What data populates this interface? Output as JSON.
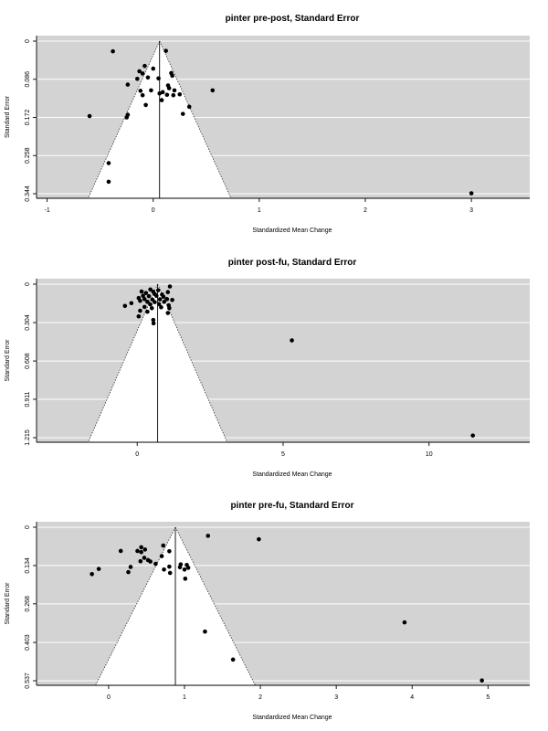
{
  "chart_data": [
    {
      "type": "scatter",
      "subtype": "funnel",
      "title": "pinter pre-post, Standard Error",
      "xlabel": "Standardized Mean Change",
      "ylabel": "Standard Error",
      "xlim": [
        -1.1,
        3.55
      ],
      "ylim": [
        0,
        0.344
      ],
      "y_reversed": true,
      "x_ticks": [
        -1,
        0,
        1,
        2,
        3
      ],
      "x_tick_labels": [
        "-1",
        "0",
        "1",
        "2",
        "3"
      ],
      "y_ticks": [
        0,
        0.086,
        0.172,
        0.258,
        0.344
      ],
      "y_tick_labels": [
        "0",
        "0.086",
        "0.172",
        "0.258",
        "0.344"
      ],
      "grid": true,
      "funnel_center": 0.06,
      "points": [
        {
          "x": -0.38,
          "y": 0.023
        },
        {
          "x": 0.12,
          "y": 0.022
        },
        {
          "x": -0.08,
          "y": 0.056
        },
        {
          "x": 0.0,
          "y": 0.062
        },
        {
          "x": -0.13,
          "y": 0.068
        },
        {
          "x": -0.1,
          "y": 0.073
        },
        {
          "x": 0.17,
          "y": 0.072
        },
        {
          "x": 0.18,
          "y": 0.078
        },
        {
          "x": -0.05,
          "y": 0.082
        },
        {
          "x": -0.15,
          "y": 0.085
        },
        {
          "x": 0.05,
          "y": 0.084
        },
        {
          "x": -0.24,
          "y": 0.098
        },
        {
          "x": 0.14,
          "y": 0.1
        },
        {
          "x": 0.15,
          "y": 0.106
        },
        {
          "x": 0.2,
          "y": 0.111
        },
        {
          "x": -0.02,
          "y": 0.111
        },
        {
          "x": -0.12,
          "y": 0.112
        },
        {
          "x": 0.09,
          "y": 0.115
        },
        {
          "x": 0.06,
          "y": 0.118
        },
        {
          "x": 0.13,
          "y": 0.121
        },
        {
          "x": -0.1,
          "y": 0.122
        },
        {
          "x": 0.19,
          "y": 0.122
        },
        {
          "x": 0.25,
          "y": 0.12
        },
        {
          "x": 0.56,
          "y": 0.111
        },
        {
          "x": 0.08,
          "y": 0.133
        },
        {
          "x": -0.07,
          "y": 0.144
        },
        {
          "x": 0.34,
          "y": 0.148
        },
        {
          "x": 0.28,
          "y": 0.164
        },
        {
          "x": -0.6,
          "y": 0.169
        },
        {
          "x": -0.24,
          "y": 0.166
        },
        {
          "x": -0.25,
          "y": 0.172
        },
        {
          "x": -0.42,
          "y": 0.275
        },
        {
          "x": -0.42,
          "y": 0.317
        },
        {
          "x": 3.0,
          "y": 0.343
        }
      ]
    },
    {
      "type": "scatter",
      "subtype": "funnel",
      "title": "pinter post-fu, Standard Error",
      "xlabel": "Standardized Mean Change",
      "ylabel": "Standard Error",
      "xlim": [
        -3.45,
        13.45
      ],
      "ylim": [
        0,
        1.215
      ],
      "y_reversed": true,
      "x_ticks": [
        0,
        5,
        10
      ],
      "x_tick_labels": [
        "0",
        "5",
        "10"
      ],
      "y_ticks": [
        0,
        0.304,
        0.608,
        0.911,
        1.215
      ],
      "y_tick_labels": [
        "0",
        "0.304",
        "0.608",
        "0.911",
        "1.215"
      ],
      "grid": true,
      "funnel_center": 0.7,
      "points": [
        {
          "x": 1.12,
          "y": 0.018
        },
        {
          "x": 0.45,
          "y": 0.042
        },
        {
          "x": 0.72,
          "y": 0.048
        },
        {
          "x": 0.15,
          "y": 0.058
        },
        {
          "x": 0.55,
          "y": 0.06
        },
        {
          "x": 1.05,
          "y": 0.063
        },
        {
          "x": 0.3,
          "y": 0.07
        },
        {
          "x": 0.6,
          "y": 0.078
        },
        {
          "x": 0.85,
          "y": 0.082
        },
        {
          "x": 0.2,
          "y": 0.092
        },
        {
          "x": 0.4,
          "y": 0.095
        },
        {
          "x": 0.66,
          "y": 0.092
        },
        {
          "x": 0.9,
          "y": 0.1
        },
        {
          "x": 0.05,
          "y": 0.11
        },
        {
          "x": 0.25,
          "y": 0.118
        },
        {
          "x": 0.52,
          "y": 0.122
        },
        {
          "x": 0.78,
          "y": 0.12
        },
        {
          "x": 1.02,
          "y": 0.118
        },
        {
          "x": 1.2,
          "y": 0.125
        },
        {
          "x": 0.1,
          "y": 0.132
        },
        {
          "x": 0.35,
          "y": 0.14
        },
        {
          "x": 0.6,
          "y": 0.142
        },
        {
          "x": 0.92,
          "y": 0.14
        },
        {
          "x": -0.2,
          "y": 0.15
        },
        {
          "x": 0.45,
          "y": 0.16
        },
        {
          "x": 0.75,
          "y": 0.158
        },
        {
          "x": 1.08,
          "y": 0.168
        },
        {
          "x": -0.42,
          "y": 0.172
        },
        {
          "x": 0.25,
          "y": 0.18
        },
        {
          "x": 0.5,
          "y": 0.19
        },
        {
          "x": 0.82,
          "y": 0.183
        },
        {
          "x": 1.1,
          "y": 0.19
        },
        {
          "x": 0.1,
          "y": 0.21
        },
        {
          "x": 0.35,
          "y": 0.218
        },
        {
          "x": 1.05,
          "y": 0.228
        },
        {
          "x": 0.05,
          "y": 0.255
        },
        {
          "x": 0.55,
          "y": 0.283
        },
        {
          "x": 0.56,
          "y": 0.31
        },
        {
          "x": 5.3,
          "y": 0.445
        },
        {
          "x": 11.5,
          "y": 1.198
        }
      ]
    },
    {
      "type": "scatter",
      "subtype": "funnel",
      "title": "pinter pre-fu, Standard Error",
      "xlabel": "Standardized Mean Change",
      "ylabel": "Standard Error",
      "xlim": [
        -0.95,
        5.55
      ],
      "ylim": [
        0,
        0.537
      ],
      "y_reversed": true,
      "x_ticks": [
        0,
        1,
        2,
        3,
        4,
        5
      ],
      "x_tick_labels": [
        "0",
        "1",
        "2",
        "3",
        "4",
        "5"
      ],
      "y_ticks": [
        0,
        0.134,
        0.268,
        0.403,
        0.537
      ],
      "y_tick_labels": [
        "0",
        "0.134",
        "0.268",
        "0.403",
        "0.537"
      ],
      "grid": true,
      "funnel_center": 0.88,
      "points": [
        {
          "x": 1.31,
          "y": 0.03
        },
        {
          "x": 1.98,
          "y": 0.042
        },
        {
          "x": 0.43,
          "y": 0.07
        },
        {
          "x": 0.48,
          "y": 0.078
        },
        {
          "x": 0.72,
          "y": 0.064
        },
        {
          "x": 0.38,
          "y": 0.083
        },
        {
          "x": 0.43,
          "y": 0.087
        },
        {
          "x": 0.8,
          "y": 0.084
        },
        {
          "x": 0.16,
          "y": 0.083
        },
        {
          "x": 0.7,
          "y": 0.101
        },
        {
          "x": 0.47,
          "y": 0.107
        },
        {
          "x": 0.52,
          "y": 0.115
        },
        {
          "x": 0.42,
          "y": 0.119
        },
        {
          "x": 0.55,
          "y": 0.12
        },
        {
          "x": 0.62,
          "y": 0.128
        },
        {
          "x": 0.95,
          "y": 0.13
        },
        {
          "x": 1.03,
          "y": 0.132
        },
        {
          "x": 0.29,
          "y": 0.139
        },
        {
          "x": 0.8,
          "y": 0.138
        },
        {
          "x": 0.94,
          "y": 0.14
        },
        {
          "x": 1.05,
          "y": 0.142
        },
        {
          "x": -0.13,
          "y": 0.146
        },
        {
          "x": 0.73,
          "y": 0.148
        },
        {
          "x": 1.0,
          "y": 0.148
        },
        {
          "x": 0.26,
          "y": 0.157
        },
        {
          "x": 0.81,
          "y": 0.16
        },
        {
          "x": -0.22,
          "y": 0.164
        },
        {
          "x": 1.01,
          "y": 0.18
        },
        {
          "x": 1.27,
          "y": 0.365
        },
        {
          "x": 3.9,
          "y": 0.333
        },
        {
          "x": 1.64,
          "y": 0.463
        },
        {
          "x": 4.92,
          "y": 0.536
        }
      ]
    }
  ]
}
